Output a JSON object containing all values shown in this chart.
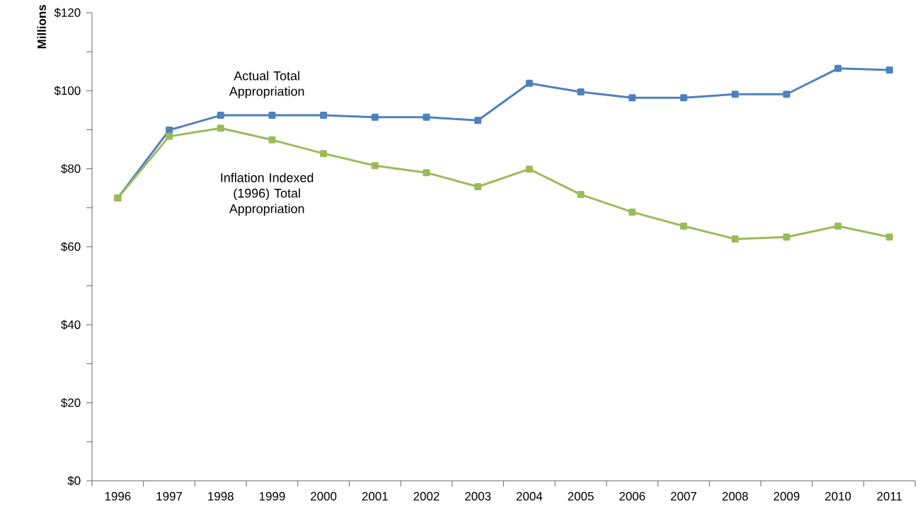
{
  "chart_data": {
    "type": "line",
    "ylabel": "Millions",
    "categories": [
      "1996",
      "1997",
      "1998",
      "1999",
      "2000",
      "2001",
      "2002",
      "2003",
      "2004",
      "2005",
      "2006",
      "2007",
      "2008",
      "2009",
      "2010",
      "2011"
    ],
    "series": [
      {
        "name": "Actual Total Appropriation",
        "color": "#4f81bd",
        "values": [
          72.5,
          89.9,
          93.7,
          93.7,
          93.7,
          93.2,
          93.2,
          92.4,
          101.9,
          99.7,
          98.2,
          98.2,
          99.1,
          99.1,
          105.7,
          105.3
        ]
      },
      {
        "name": "Inflation Indexed (1996) Total Appropriation",
        "color": "#9bbb59",
        "values": [
          72.5,
          88.3,
          90.4,
          87.4,
          83.9,
          80.8,
          79.0,
          75.4,
          79.9,
          73.4,
          68.9,
          65.3,
          62.0,
          62.5,
          65.3,
          62.5
        ]
      }
    ],
    "ylim": [
      0,
      120
    ],
    "yticks": [
      {
        "value": 0,
        "label": "$0"
      },
      {
        "value": 20,
        "label": "$20"
      },
      {
        "value": 40,
        "label": "$40"
      },
      {
        "value": 60,
        "label": "$60"
      },
      {
        "value": 80,
        "label": "$80"
      },
      {
        "value": 100,
        "label": "$100"
      },
      {
        "value": 120,
        "label": "$120"
      }
    ],
    "marker": "square",
    "line_style": "solid",
    "grid": false
  }
}
